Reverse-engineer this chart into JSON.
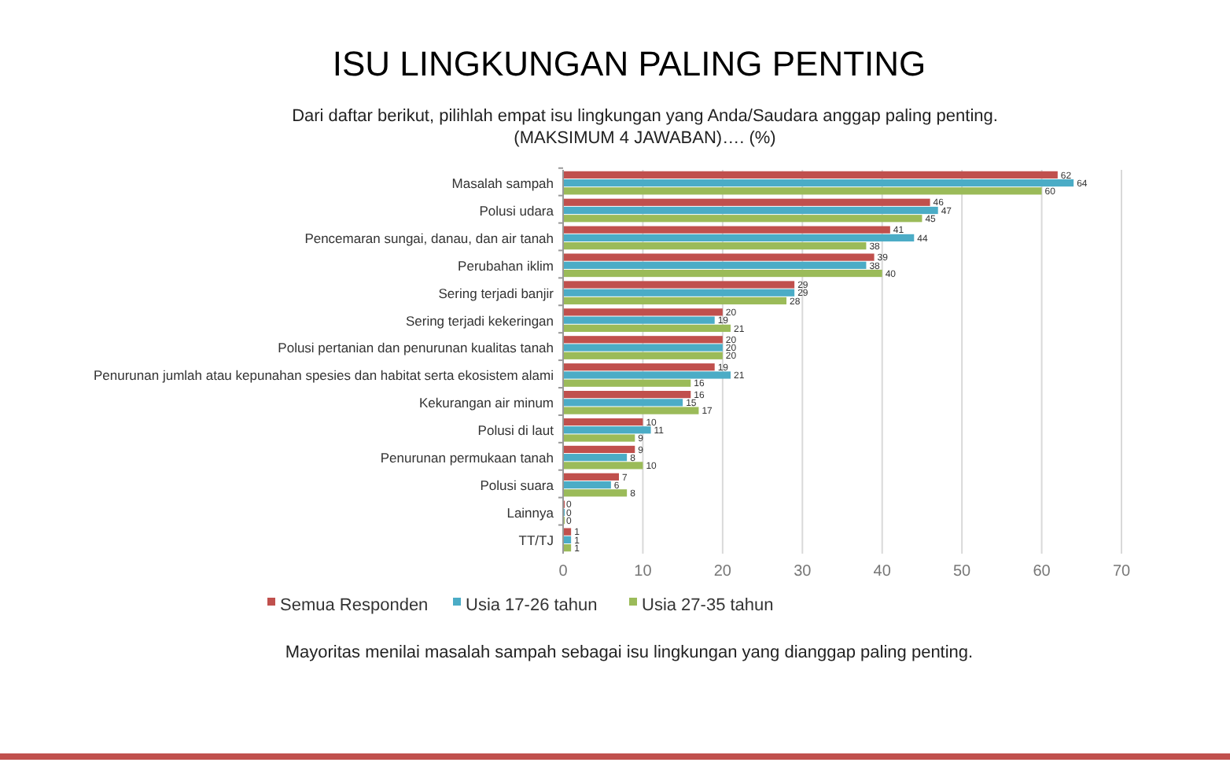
{
  "chart_data": {
    "type": "bar",
    "orientation": "horizontal",
    "title": "ISU LINGKUNGAN PALING PENTING",
    "subtitle": "Dari daftar berikut, pilihlah empat isu lingkungan yang Anda/Saudara anggap paling penting. (MAKSIMUM 4 JAWABAN)…. (%)",
    "categories": [
      "Masalah sampah",
      "Polusi udara",
      "Pencemaran sungai, danau, dan air tanah",
      "Perubahan iklim",
      "Sering terjadi banjir",
      "Sering terjadi kekeringan",
      "Polusi pertanian dan penurunan kualitas tanah",
      "Penurunan jumlah atau kepunahan spesies dan habitat serta ekosistem alami",
      "Kekurangan air minum",
      "Polusi di laut",
      "Penurunan permukaan tanah",
      "Polusi suara",
      "Lainnya",
      "TT/TJ"
    ],
    "series": [
      {
        "name": "Semua Responden",
        "color": "#c0504d",
        "values": [
          62,
          46,
          41,
          39,
          29,
          20,
          20,
          19,
          16,
          10,
          9,
          7,
          0,
          1
        ]
      },
      {
        "name": "Usia 17-26 tahun",
        "color": "#4bacc6",
        "values": [
          64,
          47,
          44,
          38,
          29,
          19,
          20,
          21,
          15,
          11,
          8,
          6,
          0,
          1
        ]
      },
      {
        "name": "Usia 27-35 tahun",
        "color": "#9bbb59",
        "values": [
          60,
          45,
          38,
          40,
          28,
          21,
          20,
          16,
          17,
          9,
          10,
          8,
          0,
          1
        ]
      }
    ],
    "xlim": [
      0,
      70
    ],
    "xticks": [
      0,
      10,
      20,
      30,
      40,
      50,
      60,
      70
    ],
    "grid": "x",
    "legend": "bottom",
    "data_labels": true,
    "annotations": [
      "Mayoritas menilai masalah sampah sebagai isu lingkungan yang dianggap paling penting."
    ]
  }
}
